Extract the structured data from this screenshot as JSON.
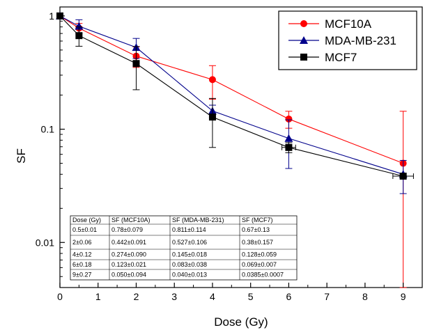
{
  "chart_data": {
    "type": "scatter",
    "xlabel": "Dose (Gy)",
    "ylabel": "SF",
    "xlim": [
      0,
      9.5
    ],
    "ylim": [
      0.004,
      1.2
    ],
    "yscale": "log",
    "x_ticks": [
      0,
      1,
      2,
      3,
      4,
      5,
      6,
      7,
      8,
      9
    ],
    "y_ticks": [
      {
        "value": 1,
        "label": "1"
      },
      {
        "value": 0.1,
        "label": "0.1"
      },
      {
        "value": 0.01,
        "label": "0.01"
      }
    ],
    "legend_position": "top-right",
    "series": [
      {
        "name": "MCF10A",
        "color": "#ff0000",
        "marker": "circle",
        "points": [
          {
            "x": 0,
            "y": 1,
            "yerr": 0,
            "xerr": 0
          },
          {
            "x": 0.5,
            "y": 0.78,
            "yerr": 0.079,
            "xerr": 0
          },
          {
            "x": 2,
            "y": 0.442,
            "yerr": 0.091,
            "xerr": 0
          },
          {
            "x": 4,
            "y": 0.274,
            "yerr": 0.09,
            "xerr": 0
          },
          {
            "x": 6,
            "y": 0.123,
            "yerr": 0.021,
            "xerr": 0
          },
          {
            "x": 9,
            "y": 0.05,
            "yerr": 0.094,
            "xerr": 0
          }
        ]
      },
      {
        "name": "MDA-MB-231",
        "color": "#00008b",
        "marker": "triangle",
        "points": [
          {
            "x": 0,
            "y": 1,
            "yerr": 0,
            "xerr": 0
          },
          {
            "x": 0.5,
            "y": 0.811,
            "yerr": 0.114,
            "xerr": 0
          },
          {
            "x": 2,
            "y": 0.527,
            "yerr": 0.106,
            "xerr": 0
          },
          {
            "x": 4,
            "y": 0.145,
            "yerr": 0.018,
            "xerr": 0
          },
          {
            "x": 6,
            "y": 0.083,
            "yerr": 0.038,
            "xerr": 0
          },
          {
            "x": 9,
            "y": 0.04,
            "yerr": 0.013,
            "xerr": 0
          }
        ]
      },
      {
        "name": "MCF7",
        "color": "#000000",
        "marker": "square",
        "points": [
          {
            "x": 0,
            "y": 1,
            "yerr": 0,
            "xerr": 0
          },
          {
            "x": 0.5,
            "y": 0.67,
            "yerr": 0.13,
            "xerr": 0
          },
          {
            "x": 2,
            "y": 0.38,
            "yerr": 0.157,
            "xerr": 0
          },
          {
            "x": 4,
            "y": 0.128,
            "yerr": 0.059,
            "xerr": 0
          },
          {
            "x": 6,
            "y": 0.069,
            "yerr": 0.007,
            "xerr": 0.18
          },
          {
            "x": 9,
            "y": 0.0385,
            "yerr": 0.0007,
            "xerr": 0.27
          }
        ]
      }
    ],
    "table": {
      "headers": [
        "Dose (Gy)",
        "SF (MCF10A)",
        "SF (MDA-MB-231)",
        "SF (MCF7)"
      ],
      "rows": [
        [
          "0.5±0.01",
          "0.78±0.079",
          "0.811±0.114",
          "0.67±0.13"
        ],
        [
          "2±0.06",
          "0.442±0.091",
          "0.527±0.106",
          "0.38±0.157"
        ],
        [
          "4±0.12",
          "0.274±0.090",
          "0.145±0.018",
          "0.128±0.059"
        ],
        [
          "6±0.18",
          "0.123±0.021",
          "0.083±0.038",
          "0.069±0.007"
        ],
        [
          "9±0.27",
          "0.050±0.094",
          "0.040±0.013",
          "0.0385±0.0007"
        ]
      ]
    }
  }
}
